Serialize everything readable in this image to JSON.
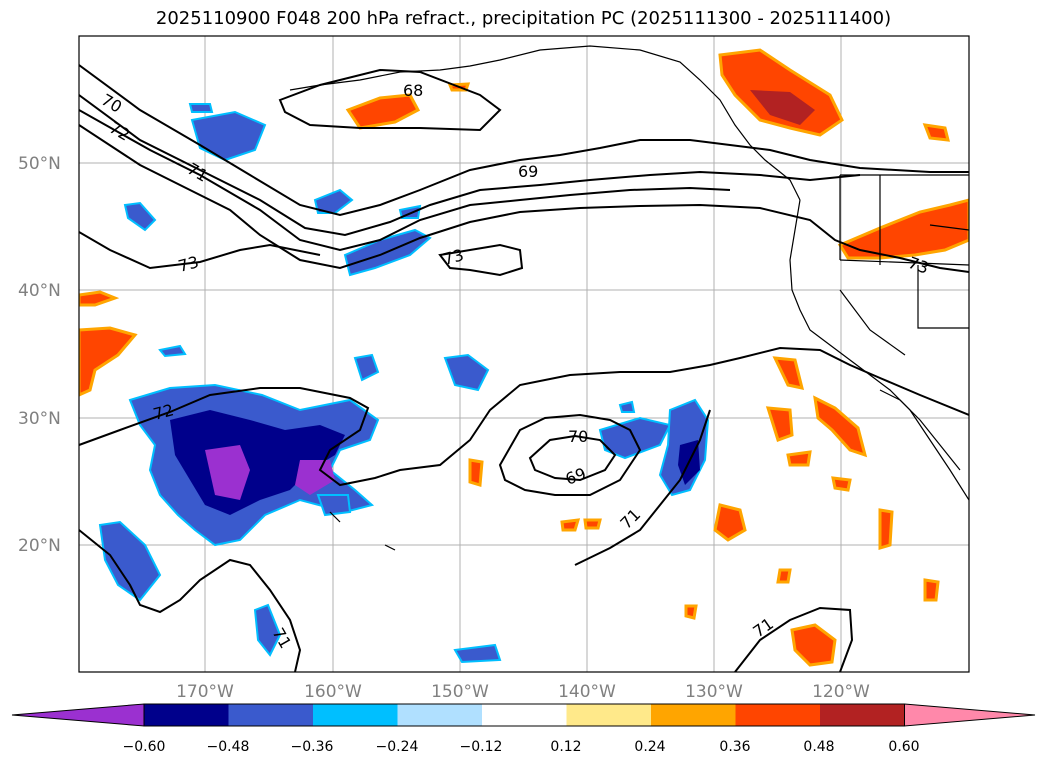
{
  "title": "2025110900 F048 200 hPa refract., precipitation PC (2025111300 - 2025111400)",
  "map": {
    "lat_labels": [
      "50°N",
      "40°N",
      "30°N",
      "20°N"
    ],
    "lon_labels": [
      "170°W",
      "160°W",
      "150°W",
      "140°W",
      "130°W",
      "120°W"
    ],
    "contour_labels": [
      "70",
      "72",
      "71",
      "68",
      "69",
      "73",
      "73",
      "73",
      "72",
      "70",
      "69",
      "71",
      "71",
      "71"
    ]
  },
  "colorbar": {
    "ticks": [
      "−0.60",
      "−0.48",
      "−0.36",
      "−0.24",
      "−0.12",
      "0.12",
      "0.24",
      "0.36",
      "0.48",
      "0.60"
    ],
    "colors": [
      "#9b30d0",
      "#00008b",
      "#3a5acd",
      "#00bfff",
      "#b0e0ff",
      "#ffffff",
      "#ffe98a",
      "#ffa500",
      "#ff4500",
      "#b22222",
      "#ff88aa"
    ]
  },
  "colors": {
    "neg_dark": "#2a2ab0",
    "neg_mid": "#3a5acd",
    "neg_light": "#00bfff",
    "purple": "#9b30d0",
    "pos_orange": "#ffa500",
    "pos_red": "#ff4500",
    "pos_dark": "#b22222"
  }
}
